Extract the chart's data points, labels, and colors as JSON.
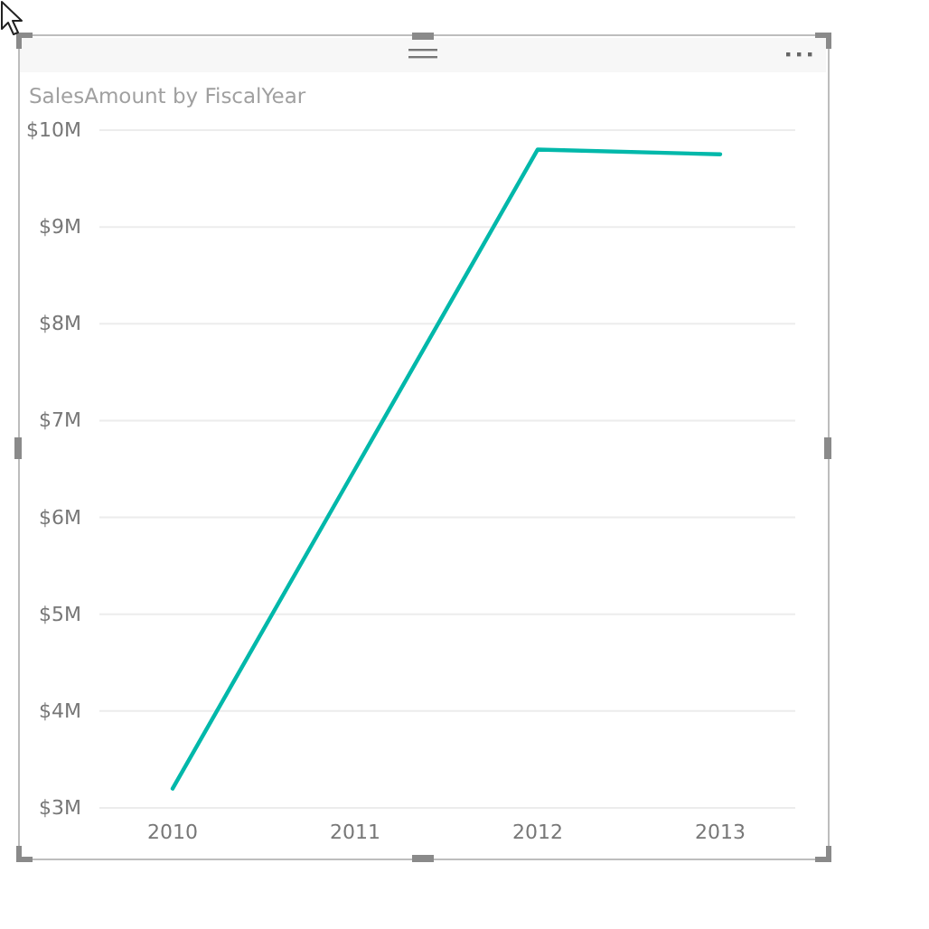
{
  "chart_data": {
    "type": "line",
    "title": "SalesAmount by FiscalYear",
    "categories": [
      "2010",
      "2011",
      "2012",
      "2013"
    ],
    "values": [
      3.2,
      6.5,
      9.8,
      9.75
    ],
    "color": "#01b8aa",
    "ylim": [
      3,
      10
    ],
    "yticks": [
      {
        "value": 3,
        "label": "$3M"
      },
      {
        "value": 4,
        "label": "$4M"
      },
      {
        "value": 5,
        "label": "$5M"
      },
      {
        "value": 6,
        "label": "$6M"
      },
      {
        "value": 7,
        "label": "$7M"
      },
      {
        "value": 8,
        "label": "$8M"
      },
      {
        "value": 9,
        "label": "$9M"
      },
      {
        "value": 10,
        "label": "$10M"
      }
    ],
    "grid": "y"
  }
}
